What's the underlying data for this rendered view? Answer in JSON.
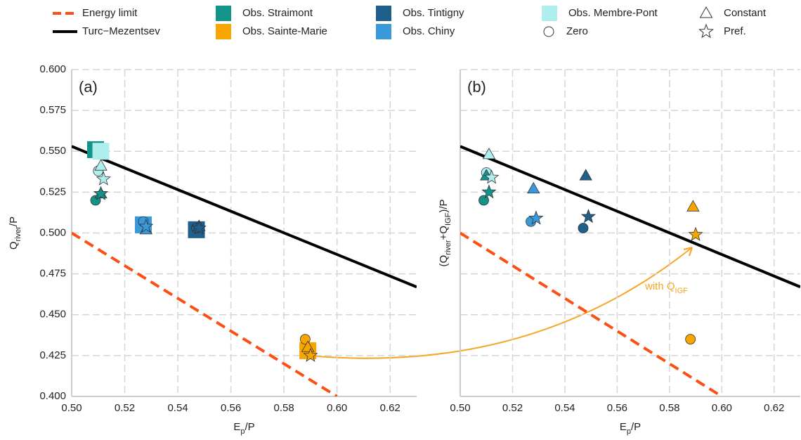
{
  "chart_data": [
    {
      "type": "scatter",
      "panel_label": "(a)",
      "xlabel": [
        "E",
        "p",
        "/P"
      ],
      "ylabel": [
        "Q",
        "river",
        "/P"
      ],
      "xlim": [
        0.5,
        0.63
      ],
      "ylim": [
        0.4,
        0.6
      ],
      "xticks": [
        {
          "value": 0.5,
          "label": "0.50"
        },
        {
          "value": 0.52,
          "label": "0.52"
        },
        {
          "value": 0.54,
          "label": "0.54"
        },
        {
          "value": 0.56,
          "label": "0.56"
        },
        {
          "value": 0.58,
          "label": "0.58"
        },
        {
          "value": 0.6,
          "label": "0.60"
        },
        {
          "value": 0.62,
          "label": "0.62"
        }
      ],
      "yticks": [
        {
          "value": 0.4,
          "label": "0.400"
        },
        {
          "value": 0.425,
          "label": "0.425"
        },
        {
          "value": 0.45,
          "label": "0.450"
        },
        {
          "value": 0.475,
          "label": "0.475"
        },
        {
          "value": 0.5,
          "label": "0.500"
        },
        {
          "value": 0.525,
          "label": "0.525"
        },
        {
          "value": 0.55,
          "label": "0.550"
        },
        {
          "value": 0.575,
          "label": "0.575"
        },
        {
          "value": 0.6,
          "label": "0.600"
        }
      ],
      "show_ytick_labels": true,
      "grid": true,
      "lines": [
        {
          "name": "Energy limit",
          "color": "#fc4f13",
          "dashed": true,
          "x": [
            0.5,
            0.6
          ],
          "y": [
            0.5,
            0.4
          ]
        },
        {
          "name": "Turc−Mezentsev",
          "color": "#000000",
          "dashed": false,
          "x": [
            0.5,
            0.63
          ],
          "y": [
            0.553,
            0.467
          ]
        }
      ],
      "series": [
        {
          "name": "Obs. Straimont",
          "color": "#12948a",
          "obs": {
            "x": 0.509,
            "y": 0.551
          },
          "zero": {
            "x": 0.509,
            "y": 0.52
          },
          "constant": {
            "x": 0.511,
            "y": 0.524
          },
          "pref": {
            "x": 0.511,
            "y": 0.524
          }
        },
        {
          "name": "Obs. Sainte-Marie",
          "color": "#f8a500",
          "obs": {
            "x": 0.589,
            "y": 0.428
          },
          "zero": {
            "x": 0.588,
            "y": 0.435
          },
          "constant": {
            "x": 0.589,
            "y": 0.43
          },
          "pref": {
            "x": 0.59,
            "y": 0.425
          }
        },
        {
          "name": "Obs. Tintigny",
          "color": "#1f5f8b",
          "obs": {
            "x": 0.547,
            "y": 0.502
          },
          "zero": {
            "x": 0.547,
            "y": 0.503
          },
          "constant": {
            "x": 0.548,
            "y": 0.504
          },
          "pref": {
            "x": 0.548,
            "y": 0.503
          }
        },
        {
          "name": "Obs. Chiny",
          "color": "#3a9ad9",
          "obs": {
            "x": 0.527,
            "y": 0.505
          },
          "zero": {
            "x": 0.527,
            "y": 0.507
          },
          "constant": {
            "x": 0.528,
            "y": 0.502
          },
          "pref": {
            "x": 0.528,
            "y": 0.504
          }
        },
        {
          "name": "Obs. Membre-Pont",
          "color": "#aeeeed",
          "obs": {
            "x": 0.511,
            "y": 0.55
          },
          "zero": {
            "x": 0.51,
            "y": 0.538
          },
          "constant": {
            "x": 0.511,
            "y": 0.541
          },
          "pref": {
            "x": 0.512,
            "y": 0.533
          }
        }
      ],
      "marker_legend": [
        {
          "name": "Zero",
          "shape": "circle"
        },
        {
          "name": "Constant",
          "shape": "triangle"
        },
        {
          "name": "Pref.",
          "shape": "star"
        }
      ]
    },
    {
      "type": "scatter",
      "panel_label": "(b)",
      "xlabel": [
        "E",
        "p",
        "/P"
      ],
      "ylabel": [
        "(Q",
        "river",
        "+Q",
        "IGF",
        ")/P"
      ],
      "xlim": [
        0.5,
        0.63
      ],
      "ylim": [
        0.4,
        0.6
      ],
      "xticks": [
        {
          "value": 0.5,
          "label": "0.50"
        },
        {
          "value": 0.52,
          "label": "0.52"
        },
        {
          "value": 0.54,
          "label": "0.54"
        },
        {
          "value": 0.56,
          "label": "0.56"
        },
        {
          "value": 0.58,
          "label": "0.58"
        },
        {
          "value": 0.6,
          "label": "0.60"
        },
        {
          "value": 0.62,
          "label": "0.62"
        }
      ],
      "yticks": [
        0.4,
        0.425,
        0.45,
        0.475,
        0.5,
        0.525,
        0.55,
        0.575,
        0.6
      ],
      "show_ytick_labels": false,
      "grid": true,
      "lines": [
        {
          "color": "#fc4f13",
          "dashed": true,
          "x": [
            0.5,
            0.6
          ],
          "y": [
            0.5,
            0.4
          ]
        },
        {
          "color": "#000000",
          "dashed": false,
          "x": [
            0.5,
            0.63
          ],
          "y": [
            0.553,
            0.467
          ]
        }
      ],
      "series": [
        {
          "color": "#12948a",
          "zero": {
            "x": 0.509,
            "y": 0.52
          },
          "constant": {
            "x": 0.51,
            "y": 0.535
          },
          "pref": {
            "x": 0.511,
            "y": 0.525
          }
        },
        {
          "color": "#f8a500",
          "zero": {
            "x": 0.588,
            "y": 0.435
          },
          "constant": {
            "x": 0.589,
            "y": 0.516
          },
          "pref": {
            "x": 0.59,
            "y": 0.499
          }
        },
        {
          "color": "#1f5f8b",
          "zero": {
            "x": 0.547,
            "y": 0.503
          },
          "constant": {
            "x": 0.548,
            "y": 0.535
          },
          "pref": {
            "x": 0.549,
            "y": 0.51
          }
        },
        {
          "color": "#3a9ad9",
          "zero": {
            "x": 0.527,
            "y": 0.507
          },
          "constant": {
            "x": 0.528,
            "y": 0.527
          },
          "pref": {
            "x": 0.529,
            "y": 0.509
          }
        },
        {
          "color": "#aeeeed",
          "zero": {
            "x": 0.51,
            "y": 0.537
          },
          "constant": {
            "x": 0.511,
            "y": 0.548
          },
          "pref": {
            "x": 0.512,
            "y": 0.534
          }
        }
      ],
      "annotation": {
        "text": [
          "with Q",
          "IGF"
        ],
        "color": "#f5a623"
      }
    }
  ]
}
